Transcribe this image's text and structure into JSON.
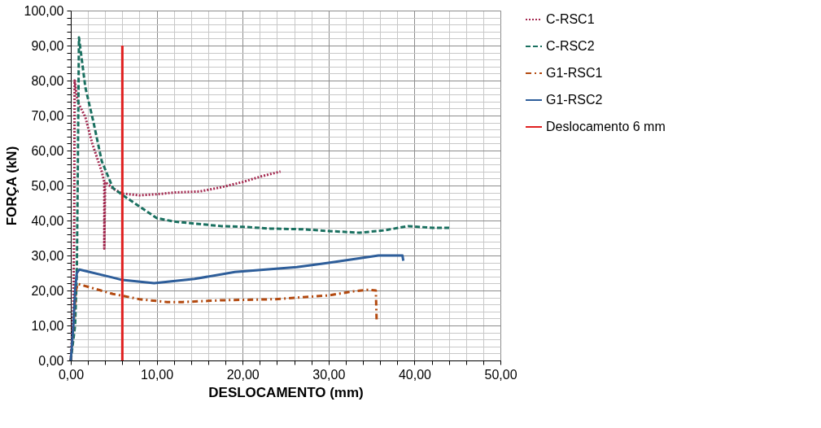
{
  "chart_data": {
    "type": "line",
    "xlabel": "DESLOCAMENTO (mm)",
    "ylabel": "FORÇA (kN)",
    "xlim": [
      0,
      50
    ],
    "ylim": [
      0,
      100
    ],
    "xticks": [
      {
        "value": 0,
        "label": "0,00"
      },
      {
        "value": 2,
        "label": null
      },
      {
        "value": 4,
        "label": null
      },
      {
        "value": 6,
        "label": null
      },
      {
        "value": 8,
        "label": null
      },
      {
        "value": 10,
        "label": "10,00"
      },
      {
        "value": 12,
        "label": null
      },
      {
        "value": 14,
        "label": null
      },
      {
        "value": 16,
        "label": null
      },
      {
        "value": 18,
        "label": null
      },
      {
        "value": 20,
        "label": "20,00"
      },
      {
        "value": 22,
        "label": null
      },
      {
        "value": 24,
        "label": null
      },
      {
        "value": 26,
        "label": null
      },
      {
        "value": 28,
        "label": null
      },
      {
        "value": 30,
        "label": "30,00"
      },
      {
        "value": 32,
        "label": null
      },
      {
        "value": 34,
        "label": null
      },
      {
        "value": 36,
        "label": null
      },
      {
        "value": 38,
        "label": null
      },
      {
        "value": 40,
        "label": "40,00"
      },
      {
        "value": 42,
        "label": null
      },
      {
        "value": 44,
        "label": null
      },
      {
        "value": 46,
        "label": null
      },
      {
        "value": 48,
        "label": null
      },
      {
        "value": 50,
        "label": "50,00"
      }
    ],
    "yticks": [
      {
        "value": 0,
        "label": "0,00"
      },
      {
        "value": 2,
        "label": null
      },
      {
        "value": 4,
        "label": null
      },
      {
        "value": 6,
        "label": null
      },
      {
        "value": 8,
        "label": null
      },
      {
        "value": 10,
        "label": "10,00"
      },
      {
        "value": 12,
        "label": null
      },
      {
        "value": 14,
        "label": null
      },
      {
        "value": 16,
        "label": null
      },
      {
        "value": 18,
        "label": null
      },
      {
        "value": 20,
        "label": "20,00"
      },
      {
        "value": 22,
        "label": null
      },
      {
        "value": 24,
        "label": null
      },
      {
        "value": 26,
        "label": null
      },
      {
        "value": 28,
        "label": null
      },
      {
        "value": 30,
        "label": "30,00"
      },
      {
        "value": 32,
        "label": null
      },
      {
        "value": 34,
        "label": null
      },
      {
        "value": 36,
        "label": null
      },
      {
        "value": 38,
        "label": null
      },
      {
        "value": 40,
        "label": "40,00"
      },
      {
        "value": 42,
        "label": null
      },
      {
        "value": 44,
        "label": null
      },
      {
        "value": 46,
        "label": null
      },
      {
        "value": 48,
        "label": null
      },
      {
        "value": 50,
        "label": "50,00"
      },
      {
        "value": 52,
        "label": null
      },
      {
        "value": 54,
        "label": null
      },
      {
        "value": 56,
        "label": null
      },
      {
        "value": 58,
        "label": null
      },
      {
        "value": 60,
        "label": "60,00"
      },
      {
        "value": 62,
        "label": null
      },
      {
        "value": 64,
        "label": null
      },
      {
        "value": 66,
        "label": null
      },
      {
        "value": 68,
        "label": null
      },
      {
        "value": 70,
        "label": "70,00"
      },
      {
        "value": 72,
        "label": null
      },
      {
        "value": 74,
        "label": null
      },
      {
        "value": 76,
        "label": null
      },
      {
        "value": 78,
        "label": null
      },
      {
        "value": 80,
        "label": "80,00"
      },
      {
        "value": 82,
        "label": null
      },
      {
        "value": 84,
        "label": null
      },
      {
        "value": 86,
        "label": null
      },
      {
        "value": 88,
        "label": null
      },
      {
        "value": 90,
        "label": "90,00"
      },
      {
        "value": 92,
        "label": null
      },
      {
        "value": 94,
        "label": null
      },
      {
        "value": 96,
        "label": null
      },
      {
        "value": 98,
        "label": null
      },
      {
        "value": 100,
        "label": "100,00"
      }
    ],
    "grid": true,
    "legend": "right",
    "series": [
      {
        "name": "C-RSC1",
        "color": "#a3284f",
        "line_style": "dotted",
        "x": [
          0,
          0.3,
          0.4,
          0.45,
          0.8,
          1.7,
          2.5,
          3.6,
          3.9,
          3.9,
          4.0,
          5,
          6,
          8,
          10,
          12,
          15,
          17.5,
          20,
          22,
          24.4
        ],
        "values": [
          0,
          15,
          40,
          80,
          74,
          69.5,
          62,
          54,
          51,
          32,
          51,
          49,
          47.7,
          47.2,
          47.5,
          48,
          48.3,
          49.5,
          51,
          52.5,
          54
        ]
      },
      {
        "name": "C-RSC2",
        "color": "#1a7060",
        "line_style": "dashed",
        "x": [
          0,
          0.5,
          0.7,
          0.8,
          0.95,
          1.7,
          2.65,
          3.6,
          4.9,
          6.2,
          8,
          10,
          12,
          17.5,
          20,
          23.2,
          27,
          30,
          33.6,
          36.5,
          39.3,
          42.1,
          44.3
        ],
        "values": [
          0,
          10,
          25,
          50,
          92.3,
          78,
          68,
          57,
          49.3,
          47,
          44,
          40.7,
          39.7,
          38.4,
          38.2,
          37.7,
          37.5,
          37,
          36.5,
          37.2,
          38.4,
          37.9,
          37.9
        ]
      },
      {
        "name": "G1-RSC1",
        "color": "#b34a10",
        "line_style": "dashdot",
        "x": [
          0,
          0.3,
          0.6,
          0.8,
          4.9,
          6,
          8,
          11.2,
          13,
          17.5,
          23.8,
          30,
          33,
          34.6,
          35.5,
          35.6
        ],
        "values": [
          0,
          10,
          20,
          21.9,
          19,
          18.5,
          17.5,
          16.7,
          16.7,
          17.2,
          17.5,
          18.6,
          19.8,
          20.2,
          20,
          11
        ]
      },
      {
        "name": "G1-RSC2",
        "color": "#2e5e9a",
        "line_style": "solid",
        "x": [
          0,
          0.3,
          0.5,
          0.7,
          1,
          4.9,
          6,
          9.7,
          14.4,
          19.1,
          26.3,
          30,
          35.8,
          38.6,
          38.7
        ],
        "values": [
          0,
          10,
          20,
          25,
          26,
          23.7,
          23,
          22.1,
          23.3,
          25.3,
          26.7,
          27.9,
          30,
          30,
          28.5
        ]
      },
      {
        "name": "Deslocamento 6 mm",
        "color": "#e02020",
        "line_style": "solid",
        "x": [
          6,
          6
        ],
        "values": [
          0,
          90
        ]
      }
    ]
  }
}
